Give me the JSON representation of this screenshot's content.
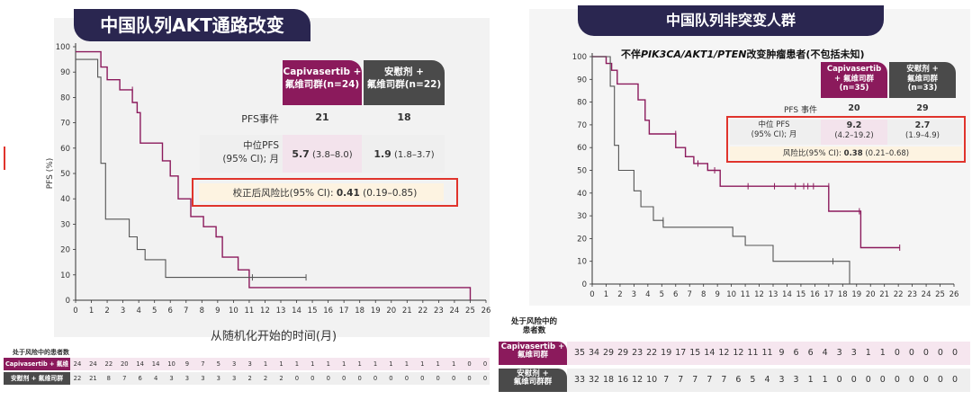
{
  "left": {
    "title": "中国队列AKT通路改变",
    "header_capi": "Capivasertib +\n氟维司群(n=24)",
    "header_capi_l1": "Capivasertib +",
    "header_capi_l2": "氟维司群(n=24)",
    "header_pbo_l1": "安慰剂 +",
    "header_pbo_l2": "氟维司群(n=22)",
    "pfs_events_label": "PFS事件",
    "pfs_events_capi": "21",
    "pfs_events_pbo": "18",
    "median_label_l1": "中位PFS",
    "median_label_l2": "(95% CI); 月",
    "median_capi_bold": "5.7",
    "median_capi_ci": " (3.8–8.0)",
    "median_pbo_bold": "1.9",
    "median_pbo_ci": " (1.8–3.7)",
    "hr_label": "校正后风险比(95% CI): ",
    "hr_bold": "0.41",
    "hr_ci": " (0.19–0.85)",
    "risk_title": "处于风险中的患者数",
    "risk_capi_label": "Capivasertib + 氟维司群",
    "risk_pbo_label": "安慰剂 + 氟维司群",
    "risk_capi": [
      "24",
      "24",
      "22",
      "20",
      "14",
      "14",
      "10",
      "9",
      "7",
      "5",
      "3",
      "3",
      "1",
      "1",
      "1",
      "1",
      "1",
      "1",
      "1",
      "1",
      "1",
      "1",
      "1",
      "1",
      "1",
      "0",
      "0"
    ],
    "risk_pbo": [
      "22",
      "21",
      "8",
      "7",
      "6",
      "4",
      "3",
      "3",
      "3",
      "3",
      "3",
      "2",
      "2",
      "2",
      "0",
      "0",
      "0",
      "0",
      "0",
      "0",
      "0",
      "0",
      "0",
      "0",
      "0",
      "0",
      "0"
    ]
  },
  "right": {
    "title": "中国队列非突变人群",
    "subtitle_pre": "不伴",
    "subtitle_genes": "PIK3CA/AKT1/PTEN",
    "subtitle_post": "改变肿瘤患者(不包括未知)",
    "header_capi_l1": "Capivasertib",
    "header_capi_l2": "+ 氟维司群",
    "header_capi_l3": "(n=35)",
    "header_pbo_l1": "安慰剂 +",
    "header_pbo_l2": "氟维司群",
    "header_pbo_l3": "(n=33)",
    "pfs_events_label": "PFS 事件",
    "pfs_events_capi": "20",
    "pfs_events_pbo": "29",
    "median_label_l1": "中位 PFS",
    "median_label_l2": "(95% CI); 月",
    "median_capi_bold": "9.2",
    "median_capi_ci": "(4.2–19.2)",
    "median_pbo_bold": "2.7",
    "median_pbo_ci": "(1.9–4.9)",
    "hr_label": "风险比(95% CI): ",
    "hr_bold": "0.38",
    "hr_ci": " (0.21–0.68)",
    "risk_title_l1": "处于风险中的",
    "risk_title_l2": "患者数",
    "risk_capi_l1": "Capivasertib +",
    "risk_capi_l2": "氟维司群",
    "risk_pbo_l1": "安慰剂 +",
    "risk_pbo_l2": "氟维司群群",
    "risk_capi": [
      "35",
      "34",
      "29",
      "29",
      "23",
      "22",
      "19",
      "17",
      "15",
      "14",
      "12",
      "12",
      "11",
      "11",
      "9",
      "6",
      "6",
      "4",
      "3",
      "3",
      "1",
      "1",
      "0",
      "0",
      "0",
      "0",
      "0"
    ],
    "risk_pbo": [
      "33",
      "32",
      "18",
      "16",
      "12",
      "10",
      "7",
      "7",
      "7",
      "7",
      "7",
      "6",
      "5",
      "4",
      "3",
      "3",
      "1",
      "1",
      "0",
      "0",
      "0",
      "0",
      "0",
      "0",
      "0",
      "0",
      "0"
    ]
  },
  "colors": {
    "capi": "#8b1a5c",
    "pbo": "#555555",
    "navy": "#2a2650",
    "pink_bg": "#f6e6ef",
    "gray_bg": "#efefef",
    "hr_bg": "#fdf3e1",
    "hr_border": "#e0342c"
  },
  "chart_data": [
    {
      "type": "line",
      "title": "中国队列AKT通路改变",
      "xlabel": "从随机化开始的时间(月)",
      "ylabel": "PFS (%)",
      "xlim": [
        0,
        26
      ],
      "ylim": [
        0,
        100
      ],
      "x_ticks": [
        "0",
        "1",
        "2",
        "3",
        "4",
        "5",
        "6",
        "7",
        "8",
        "9",
        "10",
        "11",
        "12",
        "13",
        "14",
        "15",
        "16",
        "17",
        "18",
        "19",
        "20",
        "21",
        "22",
        "23",
        "24",
        "25",
        "26"
      ],
      "y_ticks": [
        "0",
        "10",
        "20",
        "30",
        "40",
        "50",
        "60",
        "70",
        "80",
        "90",
        "100"
      ],
      "series": [
        {
          "name": "Capivasertib + 氟维司群",
          "steps": [
            [
              0,
              98
            ],
            [
              1.6,
              98
            ],
            [
              1.6,
              92
            ],
            [
              2.0,
              92
            ],
            [
              2.0,
              87
            ],
            [
              2.8,
              87
            ],
            [
              2.8,
              83
            ],
            [
              3.6,
              83
            ],
            [
              3.6,
              78
            ],
            [
              3.9,
              78
            ],
            [
              3.9,
              74
            ],
            [
              4.1,
              74
            ],
            [
              4.1,
              62
            ],
            [
              5.5,
              62
            ],
            [
              5.5,
              55
            ],
            [
              6.0,
              55
            ],
            [
              6.0,
              49
            ],
            [
              6.5,
              49
            ],
            [
              6.5,
              40
            ],
            [
              7.3,
              40
            ],
            [
              7.3,
              33
            ],
            [
              8.1,
              33
            ],
            [
              8.1,
              29
            ],
            [
              8.9,
              29
            ],
            [
              8.9,
              25
            ],
            [
              9.3,
              25
            ],
            [
              9.3,
              17
            ],
            [
              10.3,
              17
            ],
            [
              10.3,
              12
            ],
            [
              11.0,
              12
            ],
            [
              11.0,
              5
            ],
            [
              25.0,
              5
            ],
            [
              25.0,
              0
            ]
          ],
          "censor": [
            [
              3.6,
              83
            ]
          ]
        },
        {
          "name": "安慰剂 + 氟维司群",
          "steps": [
            [
              0,
              95
            ],
            [
              1.4,
              95
            ],
            [
              1.4,
              88
            ],
            [
              1.6,
              88
            ],
            [
              1.6,
              54
            ],
            [
              1.9,
              54
            ],
            [
              1.9,
              32
            ],
            [
              3.4,
              32
            ],
            [
              3.4,
              25
            ],
            [
              3.9,
              25
            ],
            [
              3.9,
              20
            ],
            [
              4.4,
              20
            ],
            [
              4.4,
              16
            ],
            [
              5.7,
              16
            ],
            [
              5.7,
              9
            ],
            [
              11.2,
              9
            ],
            [
              14.6,
              9
            ]
          ],
          "censor": [
            [
              11.2,
              9
            ],
            [
              14.6,
              9
            ]
          ]
        }
      ]
    },
    {
      "type": "line",
      "title": "不伴PIK3CA/AKT1/PTEN改变肿瘤患者(不包括未知)",
      "xlabel": "",
      "ylabel": "",
      "xlim": [
        0,
        26
      ],
      "ylim": [
        0,
        100
      ],
      "x_ticks": [
        "0",
        "1",
        "2",
        "3",
        "4",
        "5",
        "6",
        "7",
        "8",
        "9",
        "10",
        "11",
        "12",
        "13",
        "14",
        "15",
        "16",
        "17",
        "18",
        "19",
        "20",
        "21",
        "22",
        "23",
        "24",
        "25",
        "26"
      ],
      "y_ticks": [
        "0",
        "10",
        "20",
        "30",
        "40",
        "50",
        "60",
        "70",
        "80",
        "90",
        "100"
      ],
      "series": [
        {
          "name": "Capivasertib + 氟维司群",
          "steps": [
            [
              0,
              100
            ],
            [
              1.0,
              100
            ],
            [
              1.0,
              97
            ],
            [
              1.4,
              97
            ],
            [
              1.4,
              94
            ],
            [
              1.8,
              94
            ],
            [
              1.8,
              88
            ],
            [
              3.3,
              88
            ],
            [
              3.3,
              81
            ],
            [
              3.8,
              81
            ],
            [
              3.8,
              72
            ],
            [
              4.1,
              72
            ],
            [
              4.1,
              66
            ],
            [
              6.0,
              66
            ],
            [
              6.0,
              60
            ],
            [
              6.7,
              60
            ],
            [
              6.7,
              56
            ],
            [
              7.3,
              56
            ],
            [
              7.3,
              53
            ],
            [
              8.3,
              53
            ],
            [
              8.3,
              50
            ],
            [
              9.2,
              50
            ],
            [
              9.2,
              43
            ],
            [
              13.1,
              43
            ],
            [
              17.0,
              43
            ],
            [
              17.0,
              32
            ],
            [
              19.3,
              32
            ],
            [
              19.3,
              16
            ],
            [
              22.1,
              16
            ]
          ],
          "censor": [
            [
              6.0,
              66
            ],
            [
              7.6,
              53
            ],
            [
              8.8,
              50
            ],
            [
              11.2,
              43
            ],
            [
              13.1,
              43
            ],
            [
              14.6,
              43
            ],
            [
              15.2,
              43
            ],
            [
              15.5,
              43
            ],
            [
              15.9,
              43
            ],
            [
              17.0,
              43
            ],
            [
              19.2,
              32
            ],
            [
              22.1,
              16
            ]
          ]
        },
        {
          "name": "安慰剂 + 氟维司群",
          "steps": [
            [
              0,
              100
            ],
            [
              1.3,
              100
            ],
            [
              1.3,
              87
            ],
            [
              1.6,
              87
            ],
            [
              1.6,
              61
            ],
            [
              1.9,
              61
            ],
            [
              1.9,
              50
            ],
            [
              3.0,
              50
            ],
            [
              3.0,
              41
            ],
            [
              3.5,
              41
            ],
            [
              3.5,
              34
            ],
            [
              4.4,
              34
            ],
            [
              4.4,
              28
            ],
            [
              5.1,
              28
            ],
            [
              5.1,
              25
            ],
            [
              10.1,
              25
            ],
            [
              10.1,
              21
            ],
            [
              11.0,
              21
            ],
            [
              11.0,
              17
            ],
            [
              13.0,
              17
            ],
            [
              13.0,
              10
            ],
            [
              18.5,
              10
            ],
            [
              18.5,
              0
            ]
          ],
          "censor": [
            [
              5.1,
              28
            ],
            [
              17.3,
              10
            ]
          ]
        }
      ]
    }
  ]
}
